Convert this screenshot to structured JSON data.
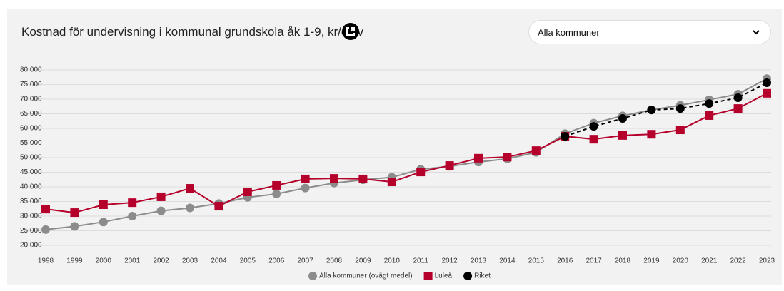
{
  "dropdown": {
    "label": "Alla kommuner"
  },
  "chart_data": {
    "type": "line",
    "title": "Kostnad för undervisning i kommunal grundskola åk 1-9, kr/elev",
    "x": [
      1998,
      1999,
      2000,
      2001,
      2002,
      2003,
      2004,
      2005,
      2006,
      2007,
      2008,
      2009,
      2010,
      2011,
      2012,
      2013,
      2014,
      2015,
      2016,
      2017,
      2018,
      2019,
      2020,
      2021,
      2022,
      2023
    ],
    "xlim": [
      1998,
      2023
    ],
    "xticks": [
      1998,
      1999,
      2000,
      2001,
      2002,
      2003,
      2004,
      2005,
      2006,
      2007,
      2008,
      2009,
      2010,
      2011,
      2012,
      2013,
      2014,
      2015,
      2016,
      2017,
      2018,
      2019,
      2020,
      2021,
      2022,
      2023
    ],
    "ylim": [
      20000,
      80000
    ],
    "yticks": [
      {
        "value": 20000,
        "label": "20 000"
      },
      {
        "value": 25000,
        "label": "25 000"
      },
      {
        "value": 30000,
        "label": "30 000"
      },
      {
        "value": 35000,
        "label": "35 000"
      },
      {
        "value": 40000,
        "label": "40 000"
      },
      {
        "value": 45000,
        "label": "45 000"
      },
      {
        "value": 50000,
        "label": "50 000"
      },
      {
        "value": 55000,
        "label": "55 000"
      },
      {
        "value": 60000,
        "label": "60 000"
      },
      {
        "value": 65000,
        "label": "65 000"
      },
      {
        "value": 70000,
        "label": "70 000"
      },
      {
        "value": 75000,
        "label": "75 000"
      },
      {
        "value": 80000,
        "label": "80 000"
      }
    ],
    "grid": true,
    "legend": "bottom",
    "series": [
      {
        "name": "Alla kommuner (ovägt medel)",
        "color": "#8c8c8c",
        "marker": "circle",
        "dashed": false,
        "values": [
          25400,
          26500,
          28000,
          30000,
          31800,
          32800,
          34300,
          36400,
          37600,
          39600,
          41300,
          42400,
          43300,
          46000,
          47000,
          48500,
          49600,
          51800,
          58200,
          61800,
          64300,
          66300,
          67900,
          69800,
          71700,
          77000
        ]
      },
      {
        "name": "Luleå",
        "color": "#b5002b",
        "marker": "square",
        "dashed": false,
        "values": [
          32400,
          31200,
          33900,
          34600,
          36600,
          39500,
          33400,
          38300,
          40500,
          42700,
          42900,
          42700,
          41700,
          45100,
          47300,
          49800,
          50200,
          52400,
          57300,
          56300,
          57600,
          58000,
          59500,
          64400,
          66800,
          72000
        ]
      },
      {
        "name": "Riket",
        "color": "#000000",
        "marker": "circle",
        "dashed": true,
        "values": [
          null,
          null,
          null,
          null,
          null,
          null,
          null,
          null,
          null,
          null,
          null,
          null,
          null,
          null,
          null,
          null,
          null,
          null,
          57300,
          60700,
          63400,
          66300,
          66800,
          68500,
          70500,
          75600
        ]
      }
    ]
  }
}
